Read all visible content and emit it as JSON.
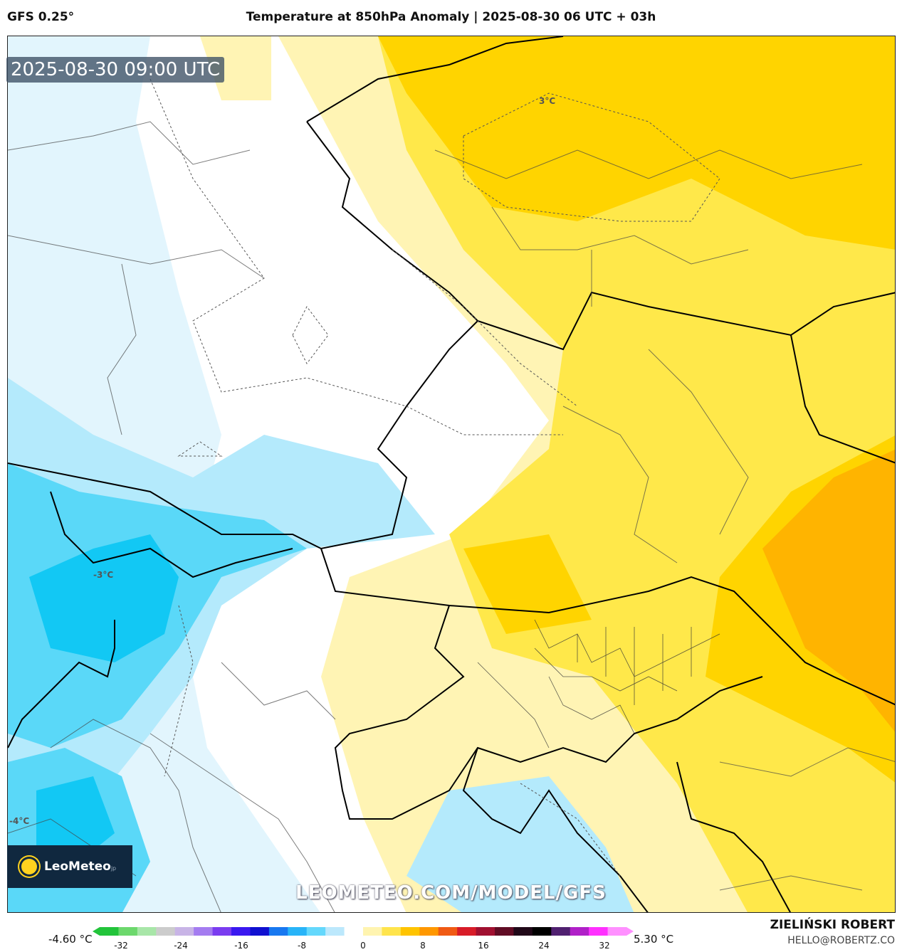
{
  "header": {
    "model": "GFS 0.25°",
    "title": "Temperature at 850hPa Anomaly | 2025-08-30 06 UTC + 03h"
  },
  "map": {
    "timestamp": "2025-08-30 09:00 UTC",
    "contour_labels": [
      "3°C",
      "-3°C",
      "-4°C"
    ],
    "watermark_url": "LEOMETEO.COM/MODEL/GFS",
    "logo_text": "LeoMeteo",
    "logo_suffix": "jp"
  },
  "colorbar": {
    "min_label": "-4.60 °C",
    "max_label": "5.30 °C",
    "ticks": [
      "-32",
      "-24",
      "-16",
      "-8",
      "0",
      "8",
      "16",
      "24",
      "32"
    ],
    "colors": [
      "#22c43a",
      "#6cd86c",
      "#a8e6a8",
      "#cccccc",
      "#c8b4e6",
      "#a47cf0",
      "#7a3cf0",
      "#3a18f0",
      "#1010d0",
      "#1878f0",
      "#28b4f8",
      "#64d8fc",
      "#bce8fc",
      "#ffffff",
      "#fff4b0",
      "#ffe44c",
      "#ffc400",
      "#ff9800",
      "#f05a14",
      "#d81c28",
      "#a01030",
      "#600c24",
      "#200818",
      "#000000",
      "#502070",
      "#b020c8",
      "#ff30ff",
      "#ff90ff"
    ]
  },
  "credits": {
    "author": "ZIELIŃSKI ROBERT",
    "email": "HELLO@ROBERTZ.CO"
  },
  "palette": {
    "deep_blue": "#12c8f4",
    "mid_blue": "#5ad8f8",
    "light_blue": "#b4eafc",
    "pale_blue": "#e2f5fd",
    "white": "#ffffff",
    "pale_yellow": "#fff4b4",
    "yellow": "#ffe84a",
    "gold": "#ffd400",
    "orange": "#ffb400"
  }
}
